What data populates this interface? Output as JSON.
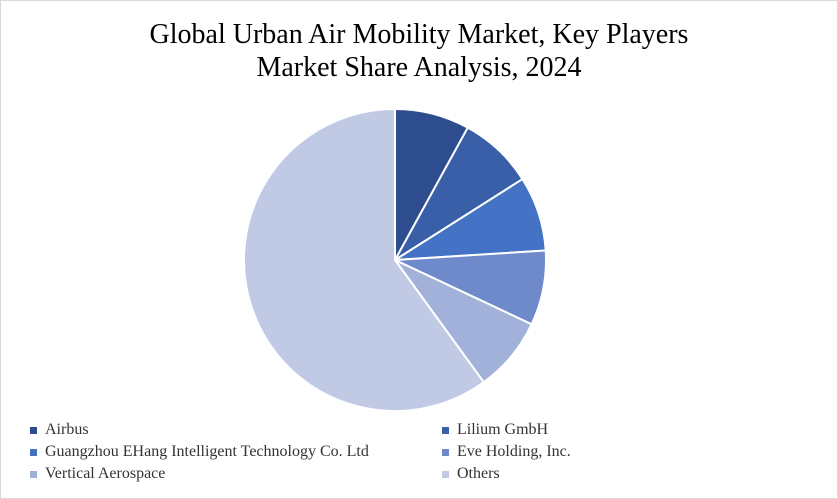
{
  "title_lines": [
    "Global Urban Air Mobility Market, Key Players",
    "Market Share Analysis, 2024"
  ],
  "chart_data": {
    "type": "pie",
    "title": "Global Urban Air Mobility Market, Key Players Market Share Analysis, 2024",
    "start_angle_deg": 0,
    "direction": "clockwise",
    "legend_position": "bottom",
    "series": [
      {
        "name": "Airbus",
        "value": 8,
        "color": "#2E4D8F"
      },
      {
        "name": "Lilium GmbH",
        "value": 8,
        "color": "#3A5FA9"
      },
      {
        "name": "Guangzhou EHang Intelligent Technology Co. Ltd",
        "value": 8,
        "color": "#4472C4"
      },
      {
        "name": "Eve Holding, Inc.",
        "value": 8,
        "color": "#6E8ACB"
      },
      {
        "name": "Vertical Aerospace",
        "value": 8,
        "color": "#A2B1DA"
      },
      {
        "name": "Others",
        "value": 60,
        "color": "#C0CAE5"
      }
    ]
  }
}
